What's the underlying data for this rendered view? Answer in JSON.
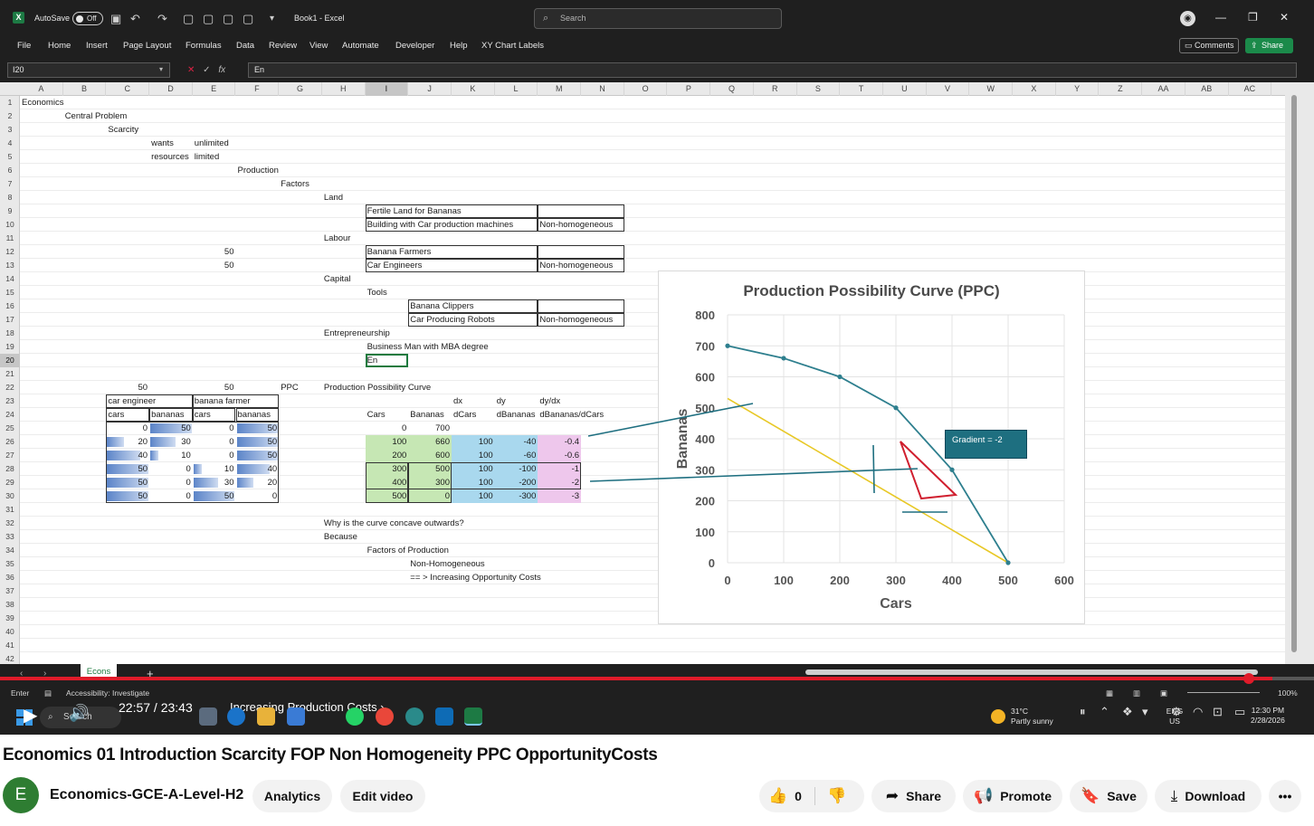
{
  "excel": {
    "autosave_label": "AutoSave",
    "autosave_state": "Off",
    "doc_title": "Book1 - Excel",
    "search_placeholder": "Search",
    "menu_tabs": [
      "File",
      "Home",
      "Insert",
      "Page Layout",
      "Formulas",
      "Data",
      "Review",
      "View",
      "Automate",
      "Developer",
      "Help",
      "XY Chart Labels"
    ],
    "comments_label": "Comments",
    "share_label": "Share",
    "name_box": "I20",
    "formula_value": "En",
    "columns": [
      "A",
      "B",
      "C",
      "D",
      "E",
      "F",
      "G",
      "H",
      "I",
      "J",
      "K",
      "L",
      "M",
      "N",
      "O",
      "P",
      "Q",
      "R",
      "S",
      "T",
      "U",
      "V",
      "W",
      "X",
      "Y",
      "Z",
      "AA",
      "AB",
      "AC"
    ],
    "selected_column": "I",
    "selected_row": "20",
    "rows": [
      "1",
      "2",
      "3",
      "4",
      "5",
      "6",
      "7",
      "8",
      "9",
      "10",
      "11",
      "12",
      "13",
      "14",
      "15",
      "16",
      "17",
      "18",
      "19",
      "20",
      "21",
      "22",
      "23",
      "24",
      "25",
      "26",
      "27",
      "28",
      "29",
      "30",
      "31",
      "32",
      "33",
      "34",
      "35",
      "36",
      "37",
      "38",
      "39",
      "40",
      "41",
      "42"
    ],
    "notes": {
      "a1": "Economics",
      "b2": "Central Problem",
      "c3": "Scarcity",
      "d4": "wants",
      "e4": "unlimited",
      "d5": "resources",
      "e5": "limited",
      "f6": "Production",
      "g7": "Factors",
      "h8": "Land",
      "h11": "Labour",
      "h14": "Capital",
      "i15": "Tools",
      "h18": "Entrepreneurship",
      "i19": "Business Man with MBA degree",
      "i20": "En",
      "e12": "50",
      "e13": "50"
    },
    "factor_tables": {
      "land": [
        [
          "Fertile Land for Bananas",
          ""
        ],
        [
          "Building with Car production machines",
          "Non-homogeneous"
        ]
      ],
      "labour": [
        [
          "Banana Farmers",
          ""
        ],
        [
          "Car Engineers",
          "Non-homogeneous"
        ]
      ],
      "capital": [
        [
          "Banana Clippers",
          ""
        ],
        [
          "Car Producing Robots",
          "Non-homogeneous"
        ]
      ]
    },
    "labour_table": {
      "top_left": "50",
      "top_right": "50",
      "ppc_label": "PPC",
      "group1": "car engineer",
      "group2": "banana farmer",
      "headers": [
        "cars",
        "bananas",
        "cars",
        "bananas"
      ],
      "rows": [
        [
          "0",
          "50",
          "0",
          "50"
        ],
        [
          "20",
          "30",
          "0",
          "50"
        ],
        [
          "40",
          "10",
          "0",
          "50"
        ],
        [
          "50",
          "0",
          "10",
          "40"
        ],
        [
          "50",
          "0",
          "30",
          "20"
        ],
        [
          "50",
          "0",
          "50",
          "0"
        ]
      ],
      "bar_fraction": [
        [
          0,
          1,
          0,
          1
        ],
        [
          0.4,
          0.6,
          0,
          1
        ],
        [
          0.8,
          0.2,
          0,
          1
        ],
        [
          1,
          0,
          0.2,
          0.8
        ],
        [
          1,
          0,
          0.6,
          0.4
        ],
        [
          1,
          0,
          1,
          0
        ]
      ]
    },
    "ppc_table": {
      "title": "Production Possibility Curve",
      "header_top": [
        "dx",
        "dy",
        "dy/dx"
      ],
      "headers": [
        "Cars",
        "Bananas",
        "dCars",
        "dBananas",
        "dBananas/dCars"
      ],
      "rows": [
        [
          "0",
          "700",
          "",
          "",
          ""
        ],
        [
          "100",
          "660",
          "100",
          "-40",
          "-0.4"
        ],
        [
          "200",
          "600",
          "100",
          "-60",
          "-0.6"
        ],
        [
          "300",
          "500",
          "100",
          "-100",
          "-1"
        ],
        [
          "400",
          "300",
          "100",
          "-200",
          "-2"
        ],
        [
          "500",
          "0",
          "100",
          "-300",
          "-3"
        ]
      ]
    },
    "question": {
      "q": "Why is the curve concave outwards?",
      "because": "Because",
      "l1": "Factors of Production",
      "l2": "Non-Homogeneous",
      "l3": "== > Increasing Opportunity Costs"
    },
    "sheet_tab": "Econs",
    "status_mode": "Enter",
    "status_accessibility": "Accessibility: Investigate",
    "zoom": "100%"
  },
  "chart_data": {
    "type": "scatter",
    "title": "Production Possibility Curve (PPC)",
    "xlabel": "Cars",
    "ylabel": "Bananas",
    "xlim": [
      0,
      600
    ],
    "ylim": [
      0,
      800
    ],
    "xticks": [
      "0",
      "100",
      "200",
      "300",
      "400",
      "500",
      "600"
    ],
    "yticks": [
      "0",
      "100",
      "200",
      "300",
      "400",
      "500",
      "600",
      "700",
      "800"
    ],
    "grid": true,
    "series": [
      {
        "x": [
          0,
          100,
          200,
          300,
          400,
          500
        ],
        "y": [
          700,
          660,
          600,
          500,
          300,
          0
        ],
        "color": "#2e7f8e"
      }
    ],
    "tangent_line": {
      "x": [
        0,
        500
      ],
      "y": [
        530,
        0
      ],
      "color": "#e8c826"
    },
    "annotation": "Gradient = -2"
  },
  "video": {
    "time": "22:57 / 23:43",
    "chapter": "Increasing Production Costs",
    "played_fraction": 0.968
  },
  "taskbar": {
    "search": "Search",
    "temperature": "31°C",
    "weather": "Partly sunny",
    "lang": "ENG US",
    "time": "12:30 PM",
    "date": "2/28/2026"
  },
  "youtube": {
    "title": "Economics 01 Introduction Scarcity FOP Non Homogeneity PPC OpportunityCosts",
    "avatar_letter": "E",
    "channel": "Economics-GCE-A-Level-H2",
    "analytics": "Analytics",
    "edit_video": "Edit video",
    "likes": "0",
    "share": "Share",
    "promote": "Promote",
    "save": "Save",
    "download": "Download"
  }
}
